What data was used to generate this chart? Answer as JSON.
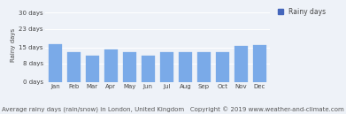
{
  "months": [
    "Jan",
    "Feb",
    "Mar",
    "Apr",
    "May",
    "Jun",
    "Jul",
    "Aug",
    "Sep",
    "Oct",
    "Nov",
    "Dec"
  ],
  "values": [
    16.5,
    13.0,
    11.5,
    14.0,
    13.0,
    11.5,
    13.0,
    13.0,
    13.0,
    13.0,
    15.5,
    16.0
  ],
  "bar_color": "#7aaae8",
  "bar_edge_color": "#7aaae8",
  "yticks": [
    0,
    8,
    15,
    23,
    30
  ],
  "ytick_labels": [
    "0 days",
    "8 days",
    "15 days",
    "23 days",
    "30 days"
  ],
  "ylim": [
    0,
    32
  ],
  "ylabel": "Rainy days",
  "xlabel": "Average rainy days (rain/snow) in London, United Kingdom   Copyright © 2019 www.weather-and-climate.com",
  "legend_label": "Rainy days",
  "legend_color": "#4466bb",
  "background_color": "#eef2f8",
  "grid_color": "#ffffff",
  "bar_width": 0.75,
  "tick_fontsize": 5.0,
  "ylabel_fontsize": 5.0,
  "xlabel_fontsize": 5.0,
  "legend_fontsize": 5.5
}
